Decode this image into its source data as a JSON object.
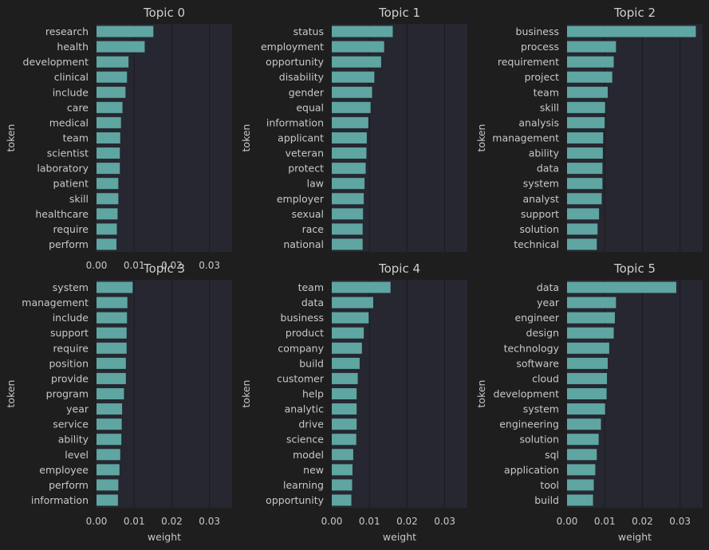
{
  "chart_data": [
    {
      "type": "bar",
      "orientation": "horizontal",
      "title": "Topic 0",
      "xlabel": "",
      "ylabel": "token",
      "xlim": [
        0,
        0.036
      ],
      "xticks": [
        "0.00",
        "0.01",
        "0.02",
        "0.03"
      ],
      "grid": true,
      "categories": [
        "research",
        "health",
        "development",
        "clinical",
        "include",
        "care",
        "medical",
        "team",
        "scientist",
        "laboratory",
        "patient",
        "skill",
        "healthcare",
        "require",
        "perform"
      ],
      "values": [
        0.0151,
        0.0128,
        0.0085,
        0.0081,
        0.0077,
        0.0069,
        0.0065,
        0.0063,
        0.0062,
        0.0062,
        0.0058,
        0.0058,
        0.0056,
        0.0054,
        0.0053
      ]
    },
    {
      "type": "bar",
      "orientation": "horizontal",
      "title": "Topic 1",
      "xlabel": "",
      "ylabel": "token",
      "xlim": [
        0,
        0.036
      ],
      "xticks": [],
      "grid": true,
      "categories": [
        "status",
        "employment",
        "opportunity",
        "disability",
        "gender",
        "equal",
        "information",
        "applicant",
        "veteran",
        "protect",
        "law",
        "employer",
        "sexual",
        "race",
        "national"
      ],
      "values": [
        0.0162,
        0.0139,
        0.0131,
        0.0113,
        0.0107,
        0.0103,
        0.0097,
        0.0093,
        0.0092,
        0.009,
        0.0087,
        0.0085,
        0.0083,
        0.0082,
        0.0082
      ]
    },
    {
      "type": "bar",
      "orientation": "horizontal",
      "title": "Topic 2",
      "xlabel": "",
      "ylabel": "token",
      "xlim": [
        0,
        0.036
      ],
      "xticks": [],
      "grid": true,
      "categories": [
        "business",
        "process",
        "requirement",
        "project",
        "team",
        "skill",
        "analysis",
        "management",
        "ability",
        "data",
        "system",
        "analyst",
        "support",
        "solution",
        "technical"
      ],
      "values": [
        0.0342,
        0.013,
        0.0124,
        0.012,
        0.0108,
        0.0101,
        0.01,
        0.0096,
        0.0095,
        0.0094,
        0.0094,
        0.0092,
        0.0085,
        0.0081,
        0.0079
      ]
    },
    {
      "type": "bar",
      "orientation": "horizontal",
      "title": "Topic 3",
      "xlabel": "weight",
      "ylabel": "token",
      "xlim": [
        0,
        0.036
      ],
      "xticks": [
        "0.00",
        "0.01",
        "0.02",
        "0.03"
      ],
      "grid": true,
      "categories": [
        "system",
        "management",
        "include",
        "support",
        "require",
        "position",
        "provide",
        "program",
        "year",
        "service",
        "ability",
        "level",
        "employee",
        "perform",
        "information"
      ],
      "values": [
        0.0096,
        0.0082,
        0.0081,
        0.008,
        0.008,
        0.0078,
        0.0078,
        0.0073,
        0.0068,
        0.0067,
        0.0066,
        0.0063,
        0.0061,
        0.0058,
        0.0057
      ]
    },
    {
      "type": "bar",
      "orientation": "horizontal",
      "title": "Topic 4",
      "xlabel": "weight",
      "ylabel": "token",
      "xlim": [
        0,
        0.036
      ],
      "xticks": [
        "0.00",
        "0.01",
        "0.02",
        "0.03"
      ],
      "grid": true,
      "categories": [
        "team",
        "data",
        "business",
        "product",
        "company",
        "build",
        "customer",
        "help",
        "analytic",
        "drive",
        "science",
        "model",
        "new",
        "learning",
        "opportunity"
      ],
      "values": [
        0.0156,
        0.011,
        0.0098,
        0.0085,
        0.008,
        0.0074,
        0.0069,
        0.0066,
        0.0066,
        0.0066,
        0.0065,
        0.0057,
        0.0055,
        0.0054,
        0.0052
      ]
    },
    {
      "type": "bar",
      "orientation": "horizontal",
      "title": "Topic 5",
      "xlabel": "weight",
      "ylabel": "token",
      "xlim": [
        0,
        0.036
      ],
      "xticks": [
        "0.00",
        "0.01",
        "0.02",
        "0.03"
      ],
      "grid": true,
      "categories": [
        "data",
        "year",
        "engineer",
        "design",
        "technology",
        "software",
        "cloud",
        "development",
        "system",
        "engineering",
        "solution",
        "sql",
        "application",
        "tool",
        "build"
      ],
      "values": [
        0.029,
        0.013,
        0.0127,
        0.0124,
        0.0112,
        0.0108,
        0.0106,
        0.0105,
        0.0101,
        0.009,
        0.0084,
        0.0079,
        0.0075,
        0.0071,
        0.0069
      ]
    }
  ]
}
